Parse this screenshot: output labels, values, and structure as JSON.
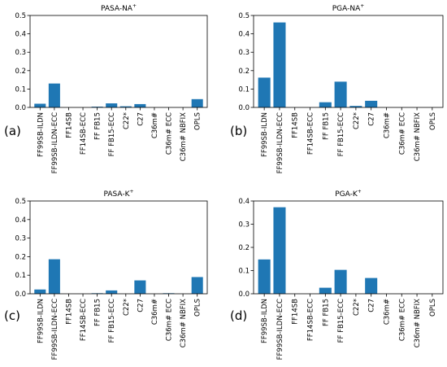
{
  "chart_data": [
    {
      "type": "bar",
      "panel_label": "(a)",
      "title": "PASA-NA",
      "title_sup": "+",
      "categories": [
        "FF99SB-ILDN",
        "FF99SB-ILDN-ECC",
        "FF14SB",
        "FF14SB-ECC",
        "FF FB15",
        "FF FB15-ECC",
        "C22*",
        "C27",
        "C36m#",
        "C36m# ECC",
        "C36m# NBFIX",
        "OPLS"
      ],
      "values": [
        0.02,
        0.13,
        0.0,
        0.0,
        0.004,
        0.022,
        0.006,
        0.018,
        0.0,
        0.0,
        0.0,
        0.045
      ],
      "ylim": [
        0,
        0.5
      ],
      "yticks": [
        "0.0",
        "0.1",
        "0.2",
        "0.3",
        "0.4",
        "0.5"
      ],
      "ytick_values": [
        0,
        0.1,
        0.2,
        0.3,
        0.4,
        0.5
      ],
      "bar_color": "#1f77b4"
    },
    {
      "type": "bar",
      "panel_label": "(b)",
      "title": "PGA-NA",
      "title_sup": "+",
      "categories": [
        "FF99SB-ILDN",
        "FF99SB-ILDN-ECC",
        "FF14SB",
        "FF14SB-ECC",
        "FF FB15",
        "FF FB15-ECC",
        "C22*",
        "C27",
        "C36m#",
        "C36m# ECC",
        "C36m# NBFIX",
        "OPLS"
      ],
      "values": [
        0.162,
        0.462,
        0.0,
        0.0,
        0.028,
        0.14,
        0.008,
        0.036,
        0.0,
        0.0,
        0.0,
        0.0
      ],
      "ylim": [
        0,
        0.5
      ],
      "yticks": [
        "0.0",
        "0.1",
        "0.2",
        "0.3",
        "0.4",
        "0.5"
      ],
      "ytick_values": [
        0,
        0.1,
        0.2,
        0.3,
        0.4,
        0.5
      ],
      "bar_color": "#1f77b4"
    },
    {
      "type": "bar",
      "panel_label": "(c)",
      "title": "PASA-K",
      "title_sup": "+",
      "categories": [
        "FF99SB-ILDN",
        "FF99SB-ILDN-ECC",
        "FF14SB",
        "FF14SB-ECC",
        "FF FB15",
        "FF FB15-ECC",
        "C22*",
        "C27",
        "C36m#",
        "C36m# ECC",
        "C36m# NBFIX",
        "OPLS"
      ],
      "values": [
        0.023,
        0.186,
        0.0,
        0.0,
        0.003,
        0.018,
        0.0,
        0.072,
        0.0,
        0.003,
        0.0,
        0.09
      ],
      "ylim": [
        0,
        0.5
      ],
      "yticks": [
        "0.0",
        "0.1",
        "0.2",
        "0.3",
        "0.4",
        "0.5"
      ],
      "ytick_values": [
        0,
        0.1,
        0.2,
        0.3,
        0.4,
        0.5
      ],
      "bar_color": "#1f77b4"
    },
    {
      "type": "bar",
      "panel_label": "(d)",
      "title": "PGA-K",
      "title_sup": "+",
      "categories": [
        "FF99SB-ILDN",
        "FF99SB-ILDN-ECC",
        "FF14SB",
        "FF14SB-ECC",
        "FF FB15",
        "FF FB15-ECC",
        "C22*",
        "C27",
        "C36m#",
        "C36m# ECC",
        "C36m# NBFIX",
        "OPLS"
      ],
      "values": [
        0.148,
        0.373,
        0.0,
        0.0,
        0.026,
        0.103,
        0.0,
        0.068,
        0.0,
        0.0,
        0.0,
        0.0
      ],
      "ylim": [
        0,
        0.4
      ],
      "yticks": [
        "0.0",
        "0.1",
        "0.2",
        "0.3",
        "0.4"
      ],
      "ytick_values": [
        0,
        0.1,
        0.2,
        0.3,
        0.4
      ],
      "bar_color": "#1f77b4"
    }
  ]
}
